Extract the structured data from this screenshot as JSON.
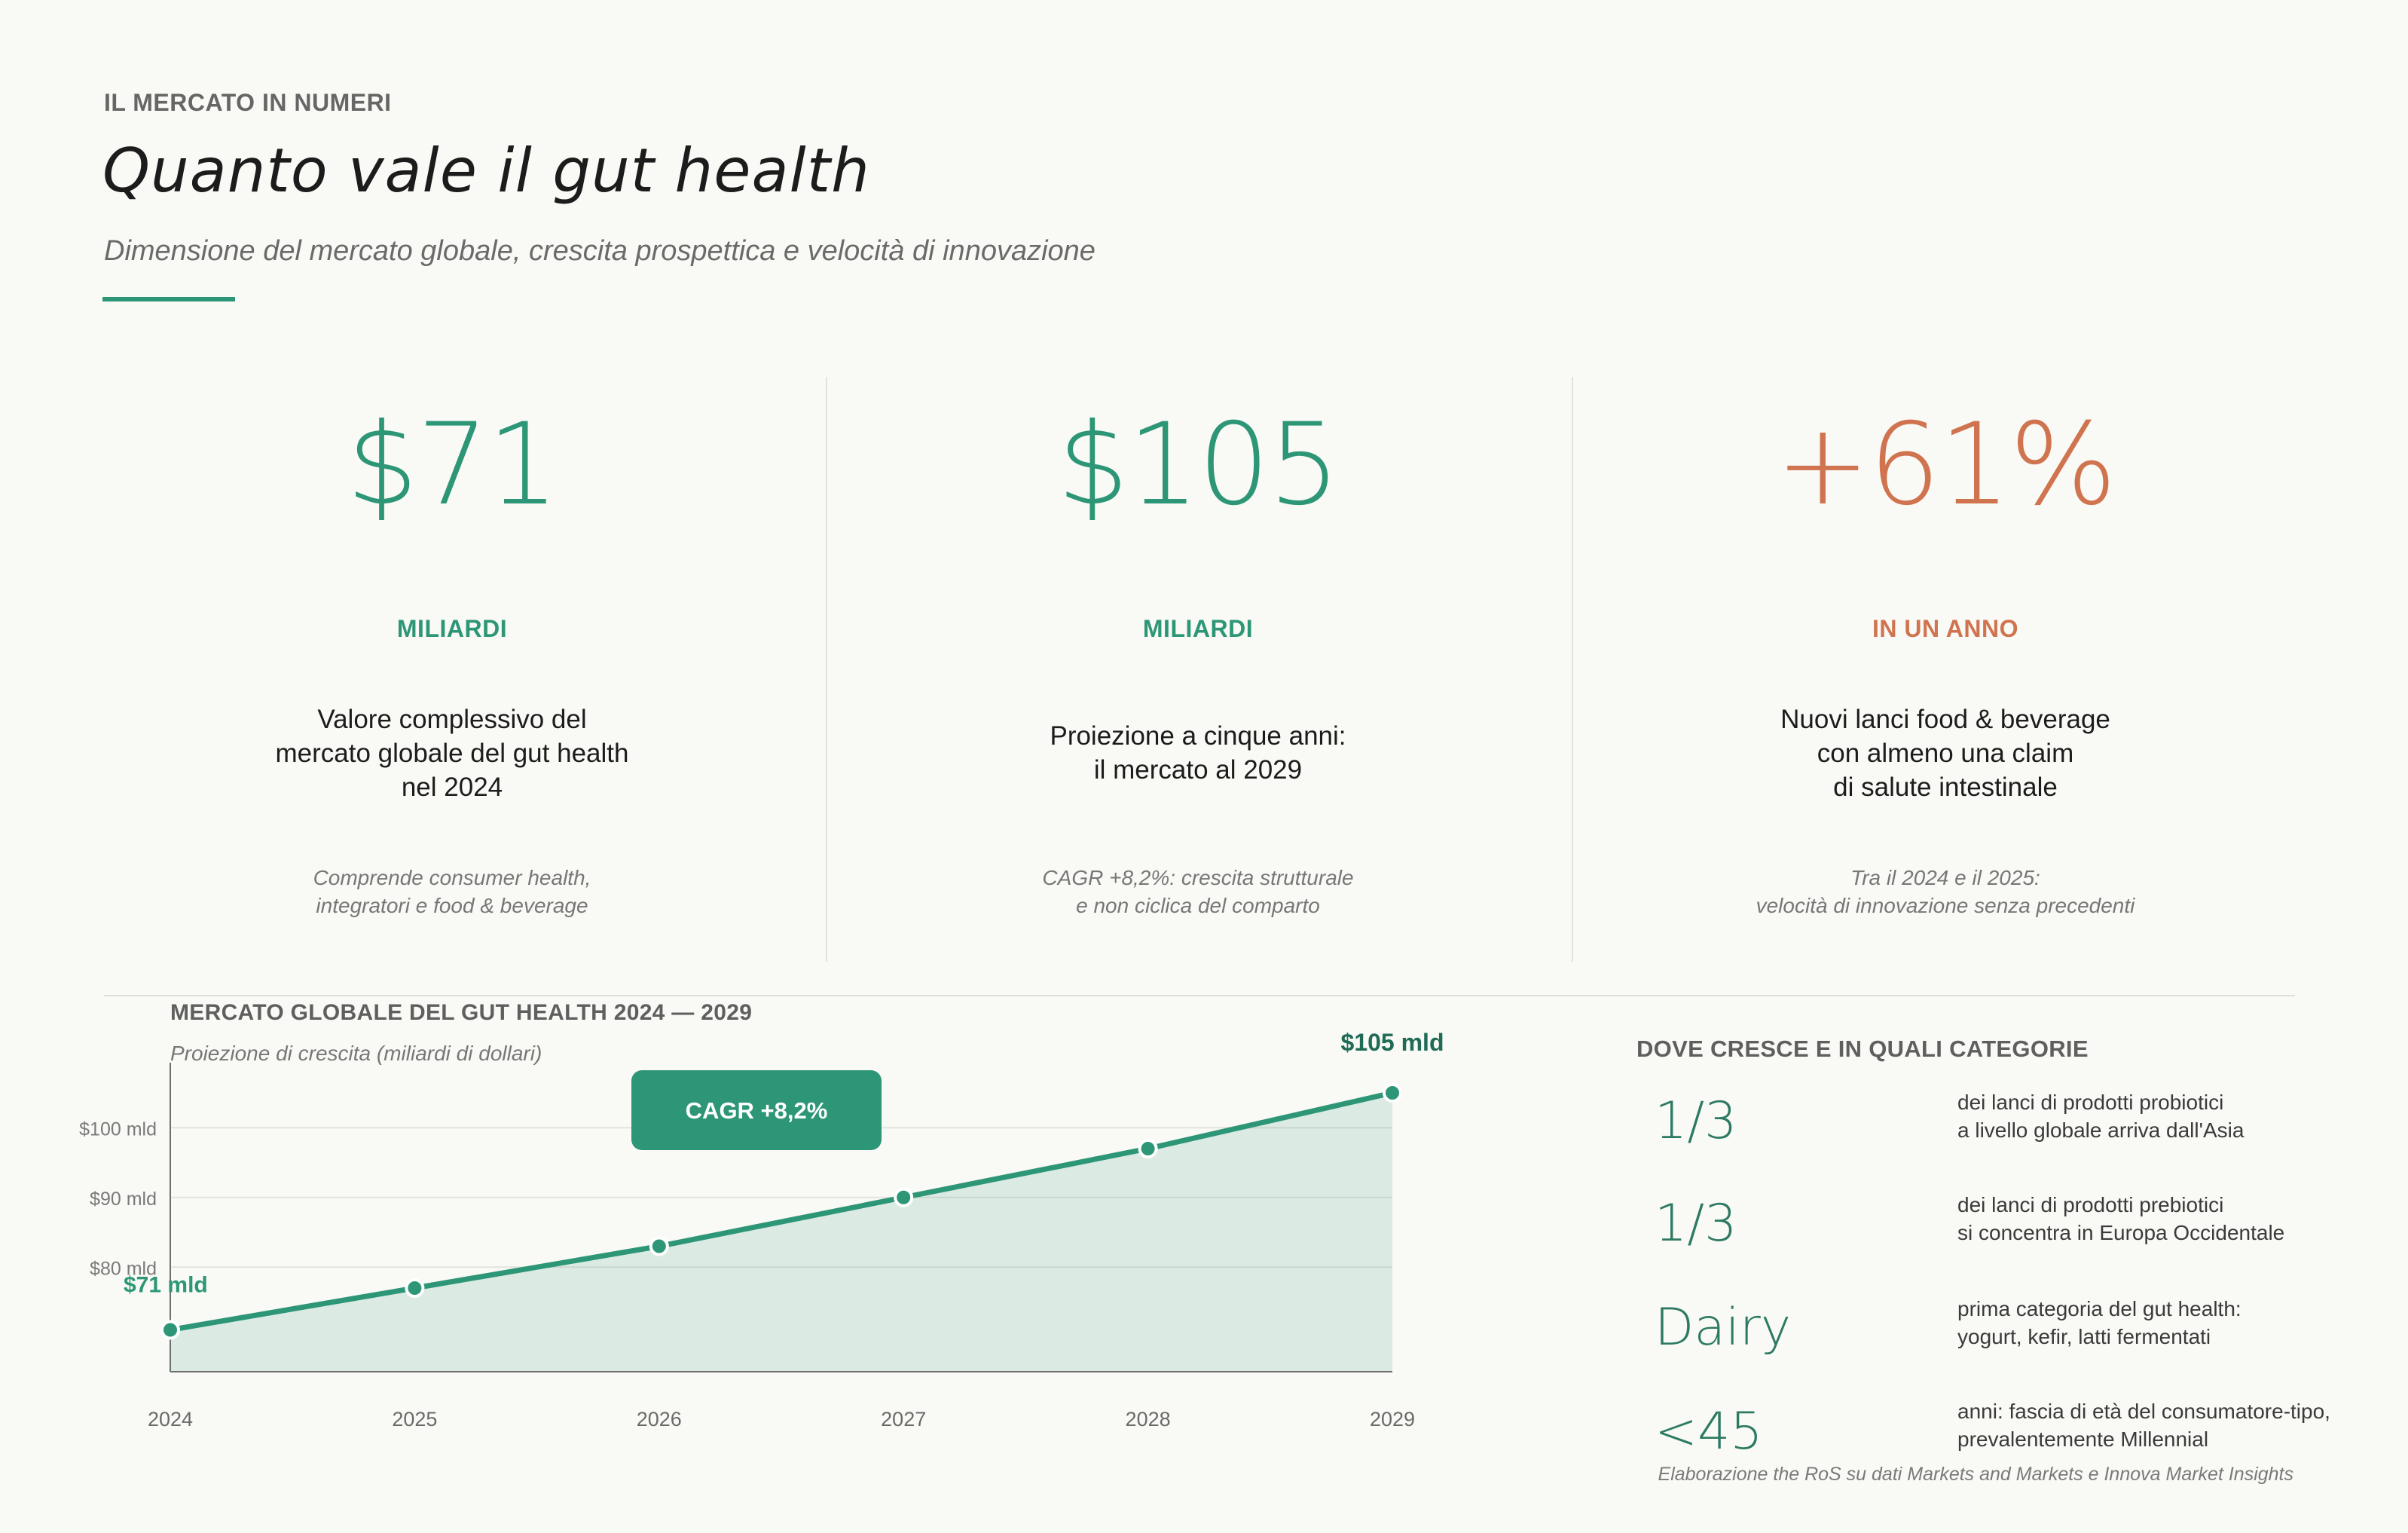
{
  "header": {
    "eyebrow": "IL MERCATO IN NUMERI",
    "title": "Quanto vale il gut health",
    "subtitle": "Dimensione del mercato globale, crescita prospettica e velocità di innovazione"
  },
  "colors": {
    "accent": "#2d9676",
    "accent_dark": "#1f6b55",
    "highlight": "#d07450"
  },
  "kpis": [
    {
      "value": "$71",
      "unit": "MILIARDI",
      "desc": [
        "Valore complessivo del",
        "mercato globale del gut health",
        "nel 2024"
      ],
      "note": [
        "Comprende consumer health,",
        "integratori e food & beverage"
      ]
    },
    {
      "value": "$105",
      "unit": "MILIARDI",
      "desc": [
        "Proiezione a cinque anni:",
        "il mercato al 2029"
      ],
      "note": [
        "CAGR +8,2%: crescita strutturale",
        "e non ciclica del comparto"
      ]
    },
    {
      "value": "+61%",
      "unit": "IN UN ANNO",
      "desc": [
        "Nuovi lanci food & beverage",
        "con almeno una claim",
        "di salute intestinale"
      ],
      "note": [
        "Tra il 2024 e il 2025:",
        "velocità di innovazione senza precedenti"
      ]
    }
  ],
  "chart_data": {
    "type": "area",
    "title": "MERCATO GLOBALE DEL GUT HEALTH 2024 — 2029",
    "subtitle": "Proiezione di crescita (miliardi di dollari)",
    "x": [
      "2024",
      "2025",
      "2026",
      "2027",
      "2028",
      "2029"
    ],
    "values": [
      71,
      77,
      83,
      90,
      97,
      105
    ],
    "ylim": [
      65,
      105
    ],
    "y_ticks": [
      80,
      90,
      100
    ],
    "y_tick_labels": [
      "$80 mld",
      "$90 mld",
      "$100 mld"
    ],
    "grid": true,
    "annotations": {
      "start_label": "$71 mld",
      "end_label": "$105 mld",
      "badge": "CAGR  +8,2%"
    }
  },
  "categories": {
    "title": "DOVE CRESCE E IN QUALI CATEGORIE",
    "items": [
      {
        "big": "1/3",
        "desc": [
          "dei lanci di prodotti probiotici",
          "a livello globale arriva dall'Asia"
        ]
      },
      {
        "big": "1/3",
        "desc": [
          "dei lanci di prodotti prebiotici",
          "si concentra in Europa Occidentale"
        ]
      },
      {
        "big": "Dairy",
        "desc": [
          "prima categoria del gut health:",
          "yogurt, kefir, latti fermentati"
        ]
      },
      {
        "big": "<45",
        "desc": [
          "anni: fascia di età del consumatore-tipo,",
          "prevalentemente Millennial"
        ]
      }
    ]
  },
  "footer": "Elaborazione the RoS su dati Markets and Markets e Innova Market Insights"
}
